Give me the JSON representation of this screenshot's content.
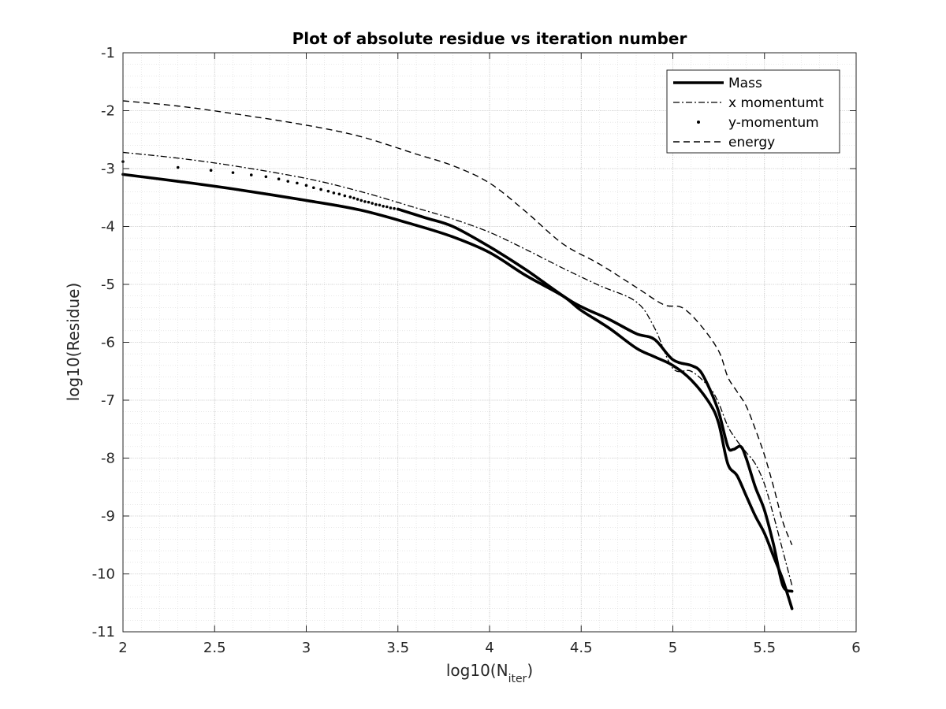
{
  "chart_data": {
    "type": "line",
    "title": "Plot of absolute residue vs iteration number",
    "xlabel": "log10(N",
    "xlabel_sub": "iter",
    "xlabel_end": ")",
    "ylabel": "log10(Residue)",
    "xlim": [
      2,
      6
    ],
    "ylim": [
      -11,
      -1
    ],
    "xticks": [
      2,
      2.5,
      3,
      3.5,
      4,
      4.5,
      5,
      5.5,
      6
    ],
    "xtick_labels": [
      "2",
      "2.5",
      "3",
      "3.5",
      "4",
      "4.5",
      "5",
      "5.5",
      "6"
    ],
    "yticks": [
      -11,
      -10,
      -9,
      -8,
      -7,
      -6,
      -5,
      -4,
      -3,
      -2,
      -1
    ],
    "ytick_labels": [
      "-11",
      "-10",
      "-9",
      "-8",
      "-7",
      "-6",
      "-5",
      "-4",
      "-3",
      "-2",
      "-1"
    ],
    "grid": true,
    "minor_grid": true,
    "legend_position": "top-right",
    "series": [
      {
        "name": "Mass",
        "style": "solid-thick",
        "color": "#000000",
        "x": [
          2.0,
          2.3,
          2.6,
          3.0,
          3.3,
          3.6,
          3.8,
          4.0,
          4.2,
          4.4,
          4.5,
          4.65,
          4.8,
          4.9,
          5.0,
          5.1,
          5.2,
          5.25,
          5.3,
          5.35,
          5.4,
          5.45,
          5.5,
          5.55,
          5.6,
          5.65
        ],
        "values": [
          -3.1,
          -3.22,
          -3.35,
          -3.55,
          -3.72,
          -3.98,
          -4.18,
          -4.45,
          -4.85,
          -5.2,
          -5.45,
          -5.75,
          -6.1,
          -6.25,
          -6.4,
          -6.65,
          -7.05,
          -7.4,
          -8.1,
          -8.3,
          -8.65,
          -9.0,
          -9.3,
          -9.7,
          -10.1,
          -10.6
        ]
      },
      {
        "name": "x momentumt",
        "style": "dash-dot",
        "color": "#000000",
        "x": [
          2.0,
          2.3,
          2.6,
          3.0,
          3.3,
          3.6,
          3.8,
          4.0,
          4.2,
          4.4,
          4.6,
          4.8,
          4.9,
          5.0,
          5.1,
          5.2,
          5.25,
          5.3,
          5.35,
          5.4,
          5.45,
          5.5,
          5.55,
          5.6,
          5.65
        ],
        "values": [
          -2.72,
          -2.82,
          -2.95,
          -3.17,
          -3.4,
          -3.68,
          -3.87,
          -4.1,
          -4.4,
          -4.72,
          -5.02,
          -5.3,
          -5.75,
          -6.45,
          -6.5,
          -6.78,
          -7.05,
          -7.45,
          -7.7,
          -7.9,
          -8.1,
          -8.45,
          -9.0,
          -9.6,
          -10.2
        ]
      },
      {
        "name": "y-momentum",
        "style": "dots",
        "color": "#000000",
        "x": [
          2.0,
          2.3,
          2.48,
          2.6,
          2.7,
          2.78,
          2.85,
          2.9,
          2.95,
          3.0,
          3.04,
          3.08,
          3.12,
          3.15,
          3.18,
          3.21,
          3.24,
          3.26,
          3.28,
          3.3,
          3.32,
          3.34,
          3.36,
          3.38,
          3.4,
          3.42,
          3.44,
          3.46,
          3.48,
          3.5
        ],
        "values": [
          -2.88,
          -2.98,
          -3.03,
          -3.07,
          -3.11,
          -3.14,
          -3.18,
          -3.22,
          -3.25,
          -3.29,
          -3.33,
          -3.36,
          -3.39,
          -3.42,
          -3.44,
          -3.47,
          -3.49,
          -3.51,
          -3.53,
          -3.55,
          -3.57,
          -3.58,
          -3.6,
          -3.62,
          -3.63,
          -3.65,
          -3.66,
          -3.68,
          -3.69,
          -3.7
        ]
      },
      {
        "name": "y-momentum",
        "style": "solid-thick",
        "color": "#000000",
        "legend": false,
        "x": [
          3.5,
          3.65,
          3.8,
          4.0,
          4.2,
          4.45,
          4.65,
          4.8,
          4.9,
          5.0,
          5.1,
          5.15,
          5.2,
          5.25,
          5.3,
          5.33,
          5.37,
          5.4,
          5.45,
          5.5,
          5.55,
          5.6,
          5.65
        ],
        "values": [
          -3.7,
          -3.85,
          -4.0,
          -4.35,
          -4.75,
          -5.3,
          -5.6,
          -5.85,
          -5.95,
          -6.3,
          -6.4,
          -6.5,
          -6.8,
          -7.2,
          -7.8,
          -7.85,
          -7.8,
          -8.0,
          -8.5,
          -8.9,
          -9.5,
          -10.2,
          -10.3
        ]
      },
      {
        "name": "energy",
        "style": "dashed",
        "color": "#000000",
        "x": [
          2.0,
          2.3,
          2.6,
          3.0,
          3.3,
          3.6,
          3.8,
          4.0,
          4.2,
          4.4,
          4.6,
          4.8,
          4.95,
          5.05,
          5.15,
          5.25,
          5.3,
          5.35,
          5.4,
          5.45,
          5.5,
          5.55,
          5.6,
          5.65
        ],
        "values": [
          -1.83,
          -1.92,
          -2.05,
          -2.25,
          -2.45,
          -2.75,
          -2.95,
          -3.25,
          -3.75,
          -4.3,
          -4.65,
          -5.05,
          -5.35,
          -5.4,
          -5.7,
          -6.15,
          -6.6,
          -6.85,
          -7.1,
          -7.5,
          -7.95,
          -8.5,
          -9.1,
          -9.5
        ]
      }
    ]
  }
}
